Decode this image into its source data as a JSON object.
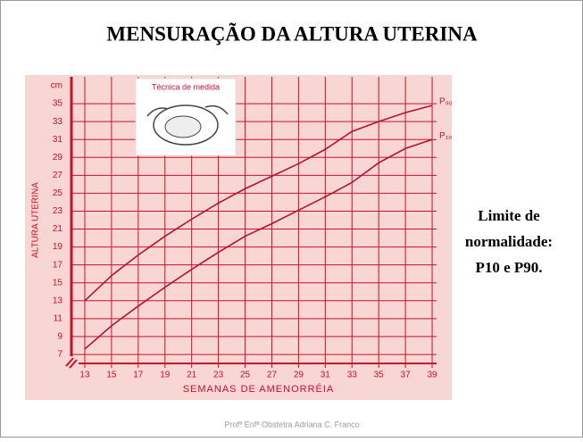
{
  "slide": {
    "title": "MENSURAÇÃO DA ALTURA UTERINA",
    "side_note": [
      "Limite de",
      "normalidade:",
      "P10 e P90."
    ],
    "footer": "Profª Enfª Obstetra Adriana C. Franco"
  },
  "chart_data": {
    "type": "line",
    "inset_label": "Técnica de medida",
    "y_unit": "cm",
    "y_label": "ALTURA UTERINA",
    "x_label": "SEMANAS DE AMENORRÉIA",
    "x": [
      13,
      15,
      17,
      19,
      21,
      23,
      25,
      27,
      29,
      31,
      33,
      35,
      37,
      39
    ],
    "series": [
      {
        "name": "P₉₀",
        "color": "#b5122e",
        "values": [
          13,
          15.8,
          18.1,
          20.2,
          22.1,
          23.9,
          25.5,
          26.9,
          28.3,
          29.9,
          31.9,
          33.0,
          34.0,
          34.8
        ]
      },
      {
        "name": "P₁₀",
        "color": "#b5122e",
        "values": [
          7.6,
          10.2,
          12.4,
          14.5,
          16.5,
          18.4,
          20.2,
          21.6,
          23.1,
          24.6,
          26.2,
          28.4,
          30.0,
          31.0
        ]
      }
    ],
    "xlim": [
      12,
      40
    ],
    "ylim": [
      6,
      38
    ],
    "xticks": [
      13,
      15,
      17,
      19,
      21,
      23,
      25,
      27,
      29,
      31,
      33,
      35,
      37,
      39
    ],
    "yticks": [
      7,
      9,
      11,
      13,
      15,
      17,
      19,
      21,
      23,
      25,
      27,
      29,
      31,
      33,
      35
    ],
    "grid": true
  }
}
